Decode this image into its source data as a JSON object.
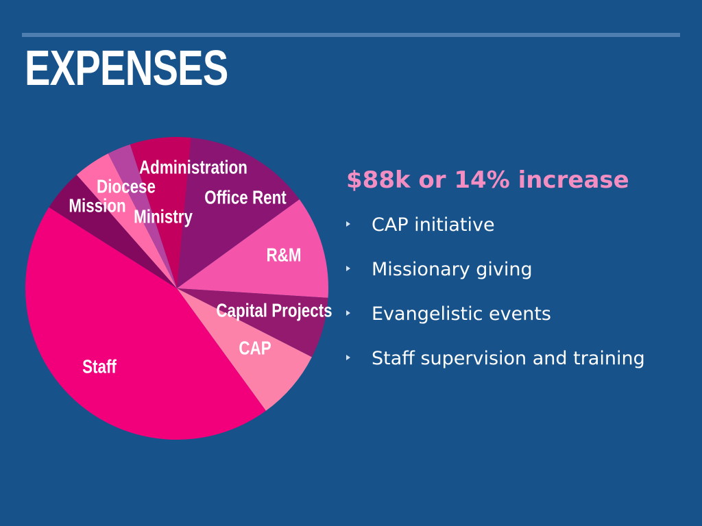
{
  "slide": {
    "title": "EXPENSES",
    "headline": "$88k or 14% increase",
    "bullets": [
      "CAP initiative",
      "Missionary giving",
      "Evangelistic events",
      "Staff supervision and training"
    ],
    "colors": {
      "background": "#17538a",
      "rule": "#4f7fb0",
      "headline": "#f28ec2",
      "text": "#ffffff"
    }
  },
  "chart_data": {
    "type": "pie",
    "title": "",
    "slices": [
      {
        "label": "Administration",
        "value": 6.5,
        "color": "#c4005f"
      },
      {
        "label": "Office Rent",
        "value": 13.5,
        "color": "#8a1573"
      },
      {
        "label": "R&M",
        "value": 11,
        "color": "#f455ab"
      },
      {
        "label": "Capital Projects",
        "value": 6.5,
        "color": "#931a6f"
      },
      {
        "label": "CAP",
        "value": 7.5,
        "color": "#fc82aa"
      },
      {
        "label": "Staff",
        "value": 44,
        "color": "#f2007c"
      },
      {
        "label": "Mission",
        "value": 4.5,
        "color": "#83095f"
      },
      {
        "label": "Diocese",
        "value": 4,
        "color": "#ff6ba9"
      },
      {
        "label": "Ministry",
        "value": 2.5,
        "color": "#b4449f"
      }
    ]
  }
}
